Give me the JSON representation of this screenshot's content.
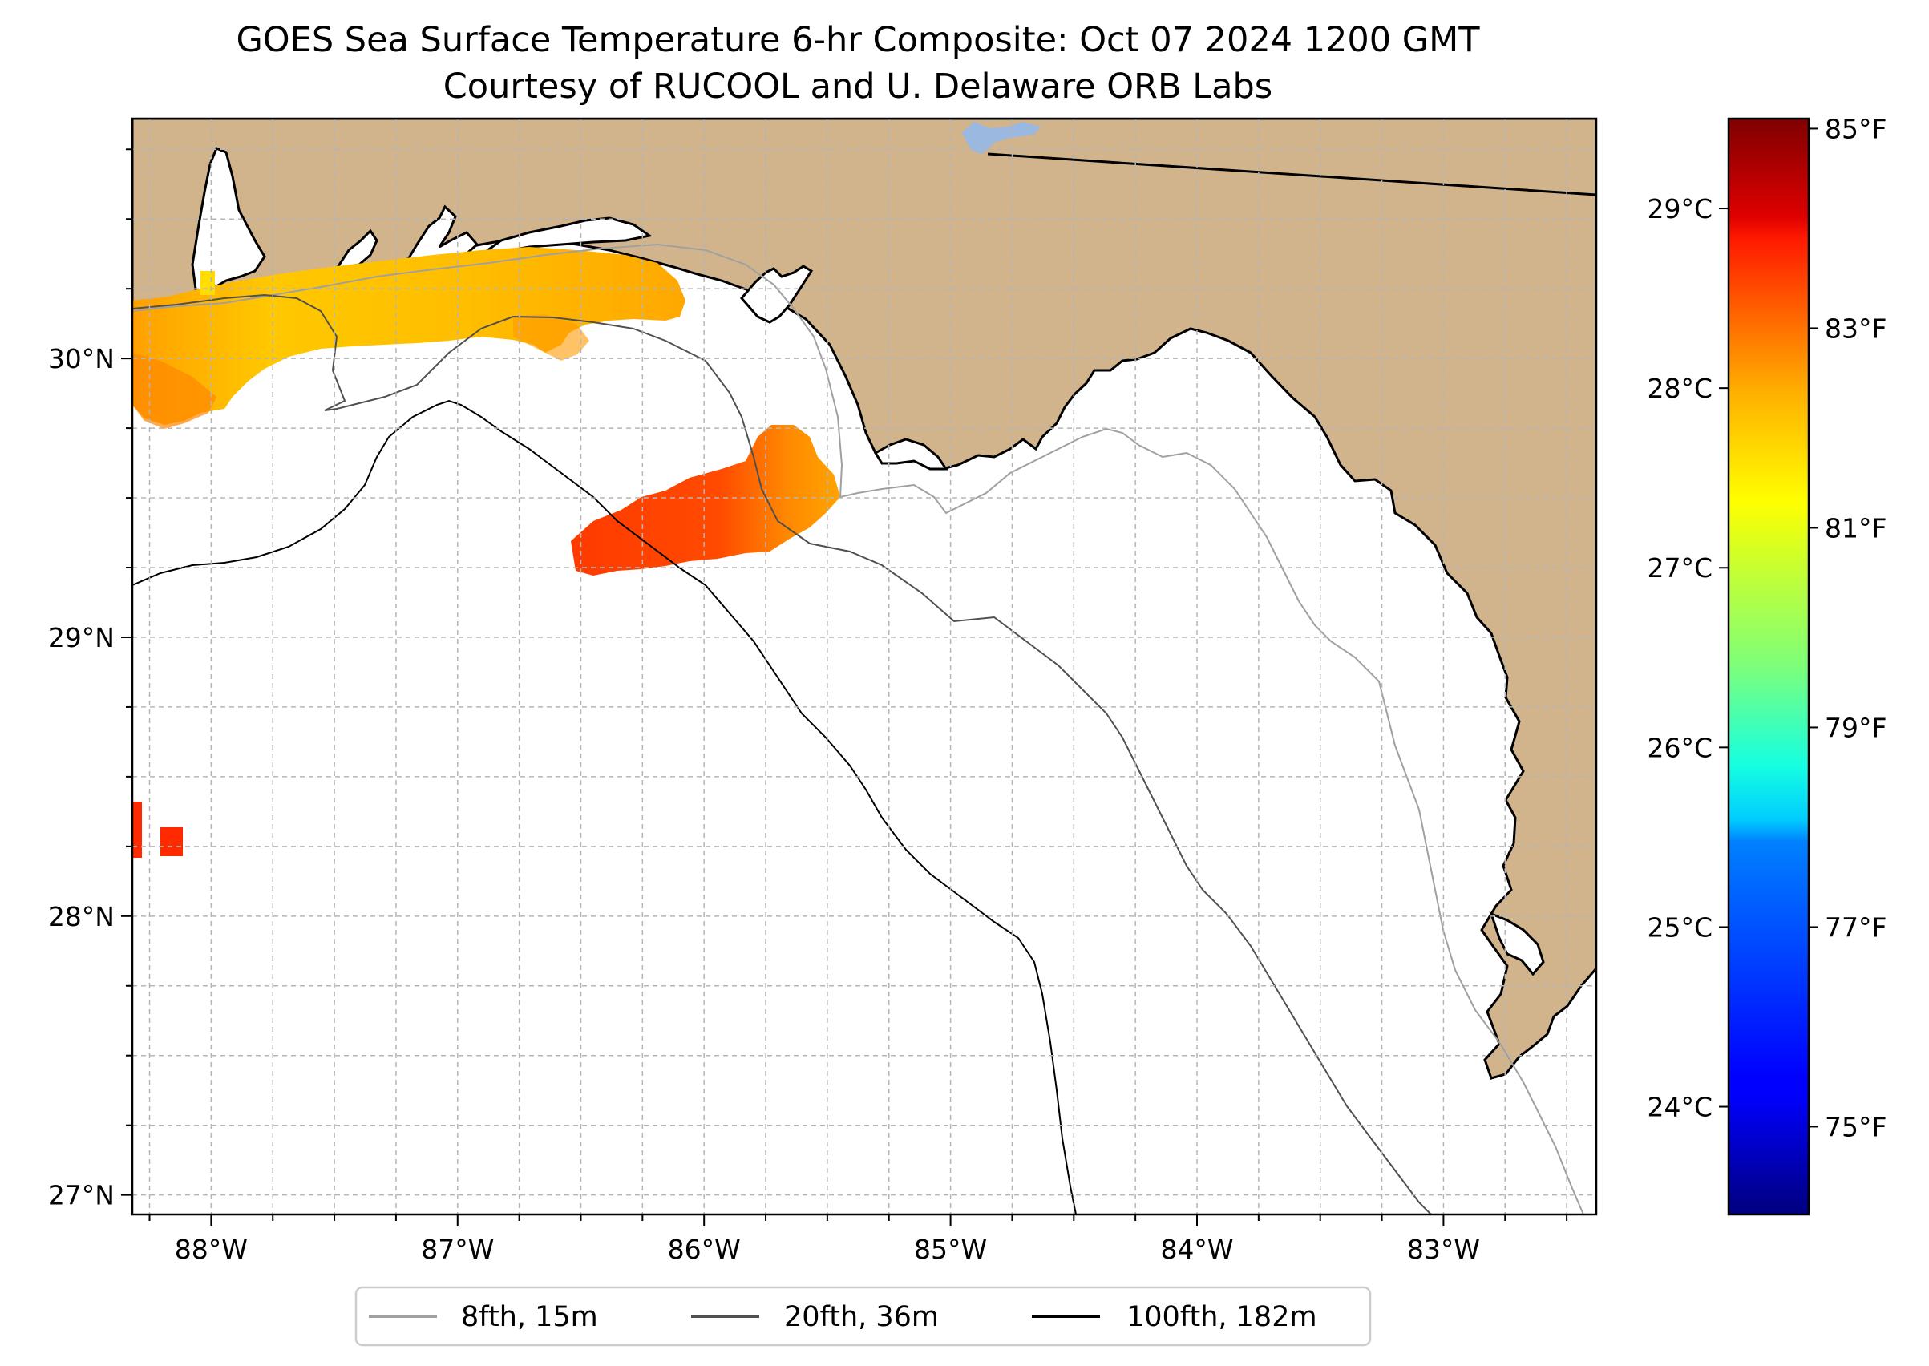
{
  "title": {
    "line1": "GOES Sea Surface Temperature 6-hr Composite: Oct 07 2024 1200 GMT",
    "line2": "Courtesy of RUCOOL and U. Delaware ORB Labs"
  },
  "map": {
    "lon_range": [
      -88.32,
      -82.38
    ],
    "lat_range": [
      26.93,
      30.86
    ],
    "lon_ticks": [
      {
        "value": -88,
        "label": "88°W"
      },
      {
        "value": -87,
        "label": "87°W"
      },
      {
        "value": -86,
        "label": "86°W"
      },
      {
        "value": -85,
        "label": "85°W"
      },
      {
        "value": -84,
        "label": "84°W"
      },
      {
        "value": -83,
        "label": "83°W"
      }
    ],
    "lat_ticks": [
      {
        "value": 27,
        "label": "27°N"
      },
      {
        "value": 28,
        "label": "28°N"
      },
      {
        "value": 29,
        "label": "29°N"
      },
      {
        "value": 30,
        "label": "30°N"
      }
    ],
    "grid": true,
    "land_color": "#d2b48c",
    "ocean_color": "#ffffff",
    "lake_color": "#9ab8e0"
  },
  "colorbar": {
    "colormap": "jet",
    "celsius_range": [
      23.4,
      29.5
    ],
    "celsius_ticks": [
      {
        "value": 24,
        "label": "24°C"
      },
      {
        "value": 25,
        "label": "25°C"
      },
      {
        "value": 26,
        "label": "26°C"
      },
      {
        "value": 27,
        "label": "27°C"
      },
      {
        "value": 28,
        "label": "28°C"
      },
      {
        "value": 29,
        "label": "29°C"
      }
    ],
    "fahrenheit_ticks": [
      {
        "value": 75,
        "label": "75°F"
      },
      {
        "value": 77,
        "label": "77°F"
      },
      {
        "value": 79,
        "label": "79°F"
      },
      {
        "value": 81,
        "label": "81°F"
      },
      {
        "value": 83,
        "label": "83°F"
      },
      {
        "value": 85,
        "label": "85°F"
      }
    ]
  },
  "legend": {
    "placement": "bottom-center",
    "items": [
      {
        "label": "8fth, 15m",
        "color": "#a0a0a0"
      },
      {
        "label": "20fth, 36m",
        "color": "#505050"
      },
      {
        "label": "100fth, 182m",
        "color": "#000000"
      }
    ]
  }
}
